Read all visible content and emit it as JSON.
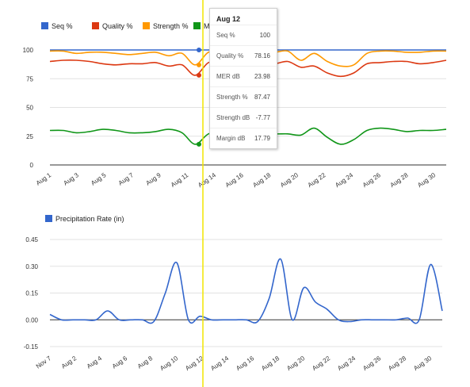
{
  "chart_data": [
    {
      "type": "line",
      "legend": {
        "placement": "top-left"
      },
      "series": [
        {
          "name": "Seq %",
          "color": "#3366cc",
          "values": [
            100,
            100,
            100,
            100,
            100,
            100,
            100,
            100,
            100,
            100,
            100,
            100,
            100,
            100,
            100,
            100,
            100,
            100,
            100,
            100,
            100,
            100,
            100,
            100,
            100,
            100,
            100,
            100,
            100,
            100,
            100
          ]
        },
        {
          "name": "Quality %",
          "color": "#dc3912",
          "values": [
            90,
            91,
            91,
            90,
            88,
            87,
            88,
            88,
            89,
            86,
            87,
            78,
            89,
            90,
            90,
            87,
            89,
            88,
            90,
            85,
            86,
            80,
            77,
            80,
            88,
            89,
            90,
            90,
            88,
            89,
            91
          ]
        },
        {
          "name": "Strength %",
          "color": "#ff9900",
          "values": [
            99,
            99,
            97,
            98,
            98,
            97,
            96,
            97,
            98,
            95,
            97,
            87,
            98,
            98,
            98,
            97,
            98,
            98,
            99,
            91,
            97,
            90,
            86,
            87,
            97,
            99,
            99,
            98,
            98,
            99,
            99
          ]
        },
        {
          "name": "Margin dB",
          "color": "#109618",
          "values": [
            30,
            30,
            28,
            29,
            31,
            30,
            28,
            28,
            29,
            31,
            28,
            18,
            27,
            28,
            28,
            27,
            28,
            27,
            27,
            26,
            32,
            24,
            18,
            22,
            30,
            32,
            31,
            29,
            30,
            30,
            31
          ]
        }
      ],
      "x_labels": [
        "Aug 1",
        "Aug 3",
        "Aug 5",
        "Aug 7",
        "Aug 9",
        "Aug 11",
        "Aug 14",
        "Aug 16",
        "Aug 18",
        "Aug 20",
        "Aug 22",
        "Aug 24",
        "Aug 26",
        "Aug 28",
        "Aug 30"
      ],
      "y_ticks": [
        "100",
        "75",
        "50",
        "25",
        "0"
      ],
      "ylim": [
        0,
        100
      ],
      "grid": true
    },
    {
      "type": "line",
      "legend": {
        "placement": "top-left"
      },
      "series": [
        {
          "name": "Precipitation Rate (in)",
          "color": "#3366cc",
          "values": [
            0.03,
            0,
            0,
            0,
            0,
            0.05,
            0,
            0,
            0,
            -0.01,
            0.15,
            0.32,
            0,
            0.02,
            0,
            0,
            0,
            0,
            -0.01,
            0.12,
            0.34,
            0,
            0.18,
            0.1,
            0.06,
            0,
            -0.01,
            0,
            0,
            0,
            0,
            0.01,
            0,
            0.31,
            0.05
          ]
        }
      ],
      "x_labels": [
        "Nov 7",
        "Aug 2",
        "Aug 4",
        "Aug 6",
        "Aug 8",
        "Aug 10",
        "Aug 12",
        "Aug 14",
        "Aug 16",
        "Aug 18",
        "Aug 20",
        "Aug 22",
        "Aug 24",
        "Aug 26",
        "Aug 28",
        "Aug 30"
      ],
      "y_ticks": [
        "0.45",
        "0.30",
        "0.15",
        "0.00",
        "-0.15"
      ],
      "ylim": [
        -0.15,
        0.45
      ],
      "grid": true
    }
  ],
  "tooltip": {
    "title": "Aug 12",
    "rows": [
      {
        "label": "Seq %",
        "value": "100"
      },
      {
        "label": "Quality %",
        "value": "78.16"
      },
      {
        "label": "MER dB",
        "value": "23.98"
      },
      {
        "label": "Strength %",
        "value": "87.47"
      },
      {
        "label": "Strength dB",
        "value": "-7.77"
      },
      {
        "label": "Margin dB",
        "value": "17.79"
      }
    ]
  },
  "cursor_color": "#f2e600"
}
